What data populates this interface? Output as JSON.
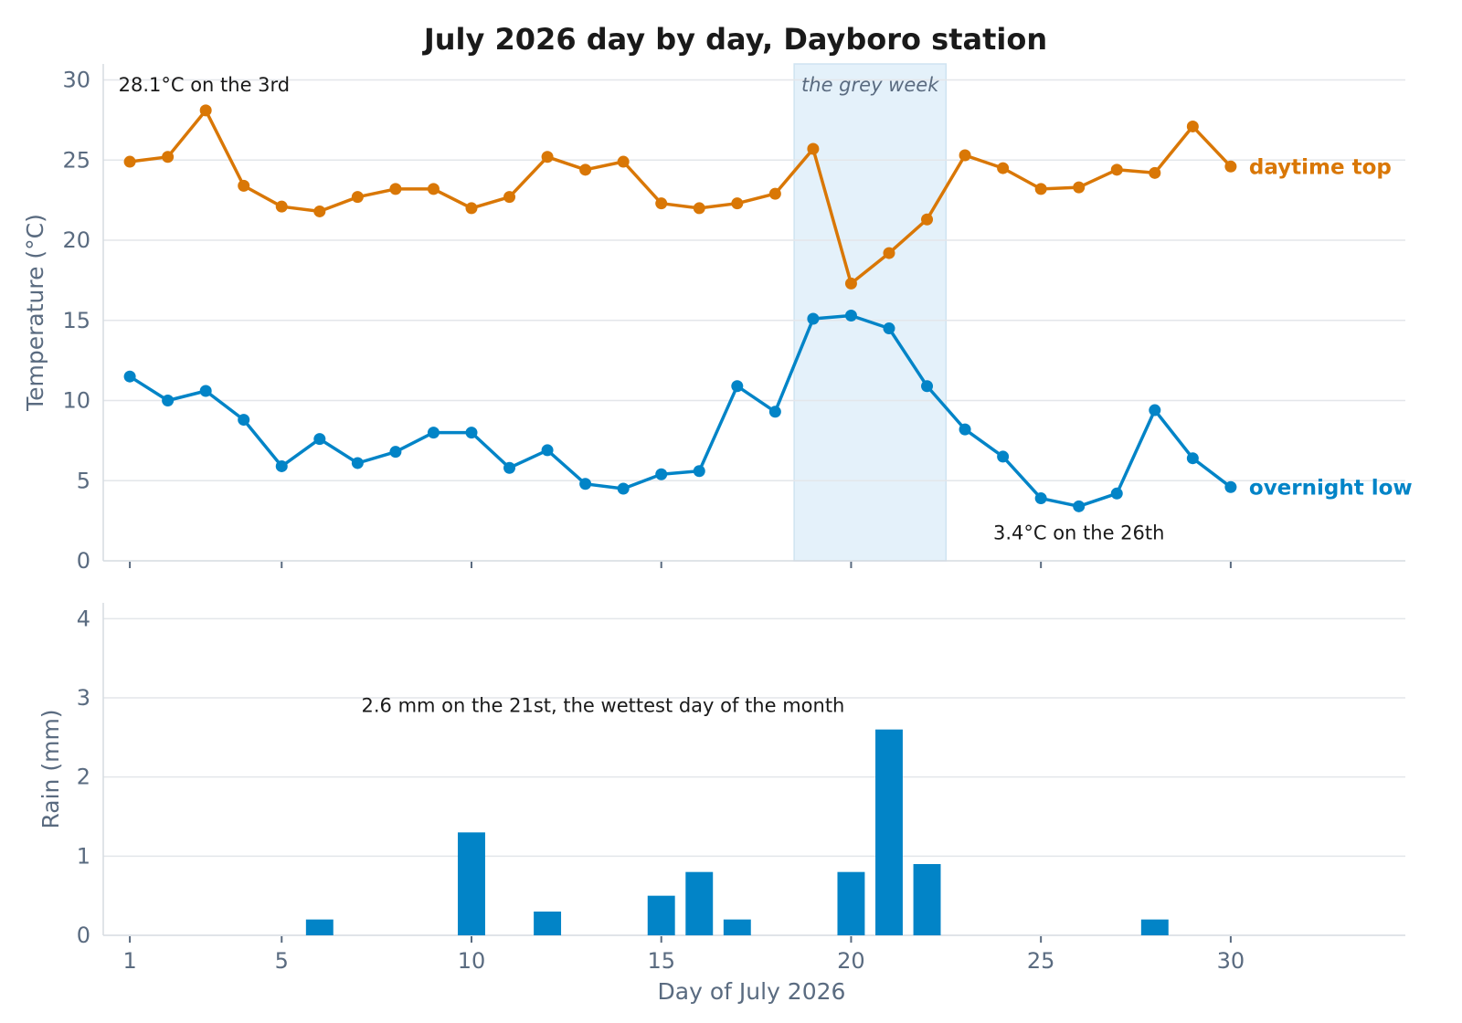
{
  "colors": {
    "high": "#d97706",
    "low": "#0284c7",
    "rain": "#0284c7",
    "shade": "#e4f1fa",
    "text": "#1a1a1a",
    "muted": "#5a6b80"
  },
  "chart_data": [
    {
      "type": "line",
      "title": "July 2026 day by day, Dayboro station",
      "ylabel": "Temperature (°C)",
      "ylim": [
        0,
        31
      ],
      "yticks": [
        0,
        5,
        10,
        15,
        20,
        25,
        30
      ],
      "xlim": [
        0.3,
        34.6
      ],
      "x": [
        1,
        2,
        3,
        4,
        5,
        6,
        7,
        8,
        9,
        10,
        11,
        12,
        13,
        14,
        15,
        16,
        17,
        18,
        19,
        20,
        21,
        22,
        23,
        24,
        25,
        26,
        27,
        28,
        29,
        30
      ],
      "series": [
        {
          "name": "daytime top",
          "color": "#d97706",
          "values": [
            24.9,
            25.2,
            28.1,
            23.4,
            22.1,
            21.8,
            22.7,
            23.2,
            23.2,
            22.0,
            22.7,
            25.2,
            24.4,
            24.9,
            22.3,
            22.0,
            22.3,
            22.9,
            25.7,
            17.3,
            19.2,
            21.3,
            25.3,
            24.5,
            23.2,
            23.3,
            24.4,
            24.2,
            27.1,
            24.6
          ]
        },
        {
          "name": "overnight low",
          "color": "#0284c7",
          "values": [
            11.5,
            10.0,
            10.6,
            8.8,
            5.9,
            7.6,
            6.1,
            6.8,
            8.0,
            8.0,
            5.8,
            6.9,
            4.8,
            4.5,
            5.4,
            5.6,
            10.9,
            9.3,
            15.1,
            15.3,
            14.5,
            10.9,
            8.2,
            6.5,
            3.9,
            3.4,
            4.2,
            9.4,
            6.4,
            4.6
          ]
        }
      ],
      "shaded_region": {
        "from": 18.5,
        "to": 22.5,
        "label": "the grey week"
      },
      "annotations": [
        {
          "text": "28.1°C on the 3rd"
        },
        {
          "text": "3.4°C on the 26th"
        }
      ],
      "grid": true
    },
    {
      "type": "bar",
      "ylabel": "Rain (mm)",
      "xlabel": "Day of July 2026",
      "ylim": [
        0,
        4.2
      ],
      "yticks": [
        0,
        1,
        2,
        3,
        4
      ],
      "xlim": [
        0.3,
        34.6
      ],
      "xticks": [
        1,
        5,
        10,
        15,
        20,
        25,
        30
      ],
      "x": [
        1,
        2,
        3,
        4,
        5,
        6,
        7,
        8,
        9,
        10,
        11,
        12,
        13,
        14,
        15,
        16,
        17,
        18,
        19,
        20,
        21,
        22,
        23,
        24,
        25,
        26,
        27,
        28,
        29,
        30
      ],
      "values": [
        0,
        0,
        0,
        0,
        0,
        0.2,
        0,
        0,
        0,
        1.3,
        0,
        0.3,
        0,
        0,
        0.5,
        0.8,
        0.2,
        0,
        0,
        0.8,
        2.6,
        0.9,
        0,
        0,
        0,
        0,
        0,
        0.2,
        0,
        0
      ],
      "annotations": [
        {
          "text": "2.6 mm on the 21st, the wettest day of the month"
        }
      ],
      "grid": true
    }
  ]
}
